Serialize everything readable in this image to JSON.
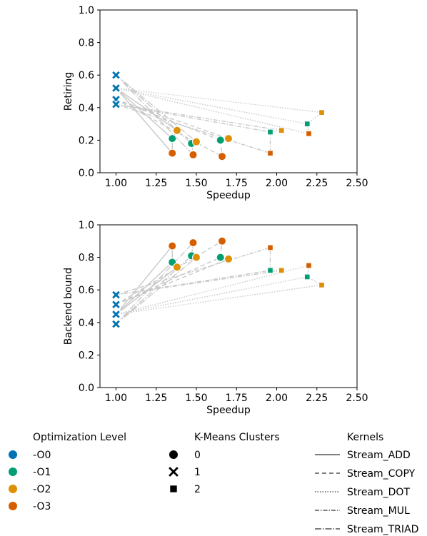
{
  "colors": {
    "O0": "#0173b2",
    "O1": "#029e73",
    "O2": "#de8f05",
    "O3": "#d55e00",
    "lines": "#c8c8c8",
    "axis": "#000000"
  },
  "legend": {
    "optimization_title": "Optimization Level",
    "optimization_items": [
      {
        "label": "-O0",
        "key": "O0"
      },
      {
        "label": "-O1",
        "key": "O1"
      },
      {
        "label": "-O2",
        "key": "O2"
      },
      {
        "label": "-O3",
        "key": "O3"
      }
    ],
    "cluster_title": "K-Means Clusters",
    "cluster_items": [
      {
        "label": "0",
        "marker": "circle"
      },
      {
        "label": "1",
        "marker": "x"
      },
      {
        "label": "2",
        "marker": "square"
      }
    ],
    "kernel_title": "Kernels",
    "kernel_items": [
      {
        "label": "Stream_ADD",
        "dash": ""
      },
      {
        "label": "Stream_COPY",
        "dash": "6,4"
      },
      {
        "label": "Stream_DOT",
        "dash": "1.5,2"
      },
      {
        "label": "Stream_MUL",
        "dash": "6,2,1.5,2"
      },
      {
        "label": "Stream_TRIAD",
        "dash": "9,2,1.5,2"
      }
    ]
  },
  "chart_data": [
    {
      "type": "scatter",
      "xlabel": "Speedup",
      "ylabel": "Retiring",
      "xlim": [
        0.9,
        2.5
      ],
      "ylim": [
        0.0,
        1.0
      ],
      "xticks": [
        "1.00",
        "1.25",
        "1.50",
        "1.75",
        "2.00",
        "2.25",
        "2.50"
      ],
      "yticks": [
        "0.0",
        "0.2",
        "0.4",
        "0.6",
        "0.8",
        "1.0"
      ],
      "xtick_values": [
        1.0,
        1.25,
        1.5,
        1.75,
        2.0,
        2.25,
        2.5
      ],
      "ytick_values": [
        0.0,
        0.2,
        0.4,
        0.6,
        0.8,
        1.0
      ],
      "series": [
        {
          "name": "Stream_ADD",
          "points": [
            {
              "x": 1.0,
              "y": 0.52,
              "level": "O0",
              "cluster": 1
            },
            {
              "x": 1.35,
              "y": 0.21,
              "level": "O1",
              "cluster": 0
            },
            {
              "x": 1.38,
              "y": 0.26,
              "level": "O2",
              "cluster": 0
            },
            {
              "x": 1.35,
              "y": 0.12,
              "level": "O3",
              "cluster": 0
            }
          ]
        },
        {
          "name": "Stream_COPY",
          "points": [
            {
              "x": 1.0,
              "y": 0.45,
              "level": "O0",
              "cluster": 1
            },
            {
              "x": 1.65,
              "y": 0.2,
              "level": "O1",
              "cluster": 0
            },
            {
              "x": 1.7,
              "y": 0.21,
              "level": "O2",
              "cluster": 0
            },
            {
              "x": 1.66,
              "y": 0.1,
              "level": "O3",
              "cluster": 0
            }
          ]
        },
        {
          "name": "Stream_DOT",
          "points": [
            {
              "x": 1.0,
              "y": 0.52,
              "level": "O0",
              "cluster": 1
            },
            {
              "x": 2.19,
              "y": 0.3,
              "level": "O1",
              "cluster": 2
            },
            {
              "x": 2.28,
              "y": 0.37,
              "level": "O2",
              "cluster": 2
            },
            {
              "x": 2.2,
              "y": 0.24,
              "level": "O3",
              "cluster": 2
            }
          ]
        },
        {
          "name": "Stream_MUL",
          "points": [
            {
              "x": 1.0,
              "y": 0.42,
              "level": "O0",
              "cluster": 1
            },
            {
              "x": 1.96,
              "y": 0.25,
              "level": "O1",
              "cluster": 2
            },
            {
              "x": 2.03,
              "y": 0.26,
              "level": "O2",
              "cluster": 2
            },
            {
              "x": 1.96,
              "y": 0.12,
              "level": "O3",
              "cluster": 2
            }
          ]
        },
        {
          "name": "Stream_TRIAD",
          "points": [
            {
              "x": 1.0,
              "y": 0.6,
              "level": "O0",
              "cluster": 1
            },
            {
              "x": 1.47,
              "y": 0.18,
              "level": "O1",
              "cluster": 0
            },
            {
              "x": 1.5,
              "y": 0.19,
              "level": "O2",
              "cluster": 0
            },
            {
              "x": 1.48,
              "y": 0.11,
              "level": "O3",
              "cluster": 0
            }
          ]
        }
      ]
    },
    {
      "type": "scatter",
      "xlabel": "Speedup",
      "ylabel": "Backend bound",
      "xlim": [
        0.9,
        2.5
      ],
      "ylim": [
        0.0,
        1.0
      ],
      "xticks": [
        "1.00",
        "1.25",
        "1.50",
        "1.75",
        "2.00",
        "2.25",
        "2.50"
      ],
      "yticks": [
        "0.0",
        "0.2",
        "0.4",
        "0.6",
        "0.8",
        "1.0"
      ],
      "xtick_values": [
        1.0,
        1.25,
        1.5,
        1.75,
        2.0,
        2.25,
        2.5
      ],
      "ytick_values": [
        0.0,
        0.2,
        0.4,
        0.6,
        0.8,
        1.0
      ],
      "series": [
        {
          "name": "Stream_ADD",
          "points": [
            {
              "x": 1.0,
              "y": 0.45,
              "level": "O0",
              "cluster": 1
            },
            {
              "x": 1.35,
              "y": 0.77,
              "level": "O1",
              "cluster": 0
            },
            {
              "x": 1.38,
              "y": 0.74,
              "level": "O2",
              "cluster": 0
            },
            {
              "x": 1.35,
              "y": 0.87,
              "level": "O3",
              "cluster": 0
            }
          ]
        },
        {
          "name": "Stream_COPY",
          "points": [
            {
              "x": 1.0,
              "y": 0.51,
              "level": "O0",
              "cluster": 1
            },
            {
              "x": 1.65,
              "y": 0.8,
              "level": "O1",
              "cluster": 0
            },
            {
              "x": 1.7,
              "y": 0.79,
              "level": "O2",
              "cluster": 0
            },
            {
              "x": 1.66,
              "y": 0.9,
              "level": "O3",
              "cluster": 0
            }
          ]
        },
        {
          "name": "Stream_DOT",
          "points": [
            {
              "x": 1.0,
              "y": 0.45,
              "level": "O0",
              "cluster": 1
            },
            {
              "x": 2.19,
              "y": 0.68,
              "level": "O1",
              "cluster": 2
            },
            {
              "x": 2.28,
              "y": 0.63,
              "level": "O2",
              "cluster": 2
            },
            {
              "x": 2.2,
              "y": 0.75,
              "level": "O3",
              "cluster": 2
            }
          ]
        },
        {
          "name": "Stream_MUL",
          "points": [
            {
              "x": 1.0,
              "y": 0.57,
              "level": "O0",
              "cluster": 1
            },
            {
              "x": 1.96,
              "y": 0.72,
              "level": "O1",
              "cluster": 2
            },
            {
              "x": 2.03,
              "y": 0.72,
              "level": "O2",
              "cluster": 2
            },
            {
              "x": 1.96,
              "y": 0.86,
              "level": "O3",
              "cluster": 2
            }
          ]
        },
        {
          "name": "Stream_TRIAD",
          "points": [
            {
              "x": 1.0,
              "y": 0.39,
              "level": "O0",
              "cluster": 1
            },
            {
              "x": 1.47,
              "y": 0.81,
              "level": "O1",
              "cluster": 0
            },
            {
              "x": 1.5,
              "y": 0.8,
              "level": "O2",
              "cluster": 0
            },
            {
              "x": 1.48,
              "y": 0.89,
              "level": "O3",
              "cluster": 0
            }
          ]
        }
      ]
    }
  ]
}
